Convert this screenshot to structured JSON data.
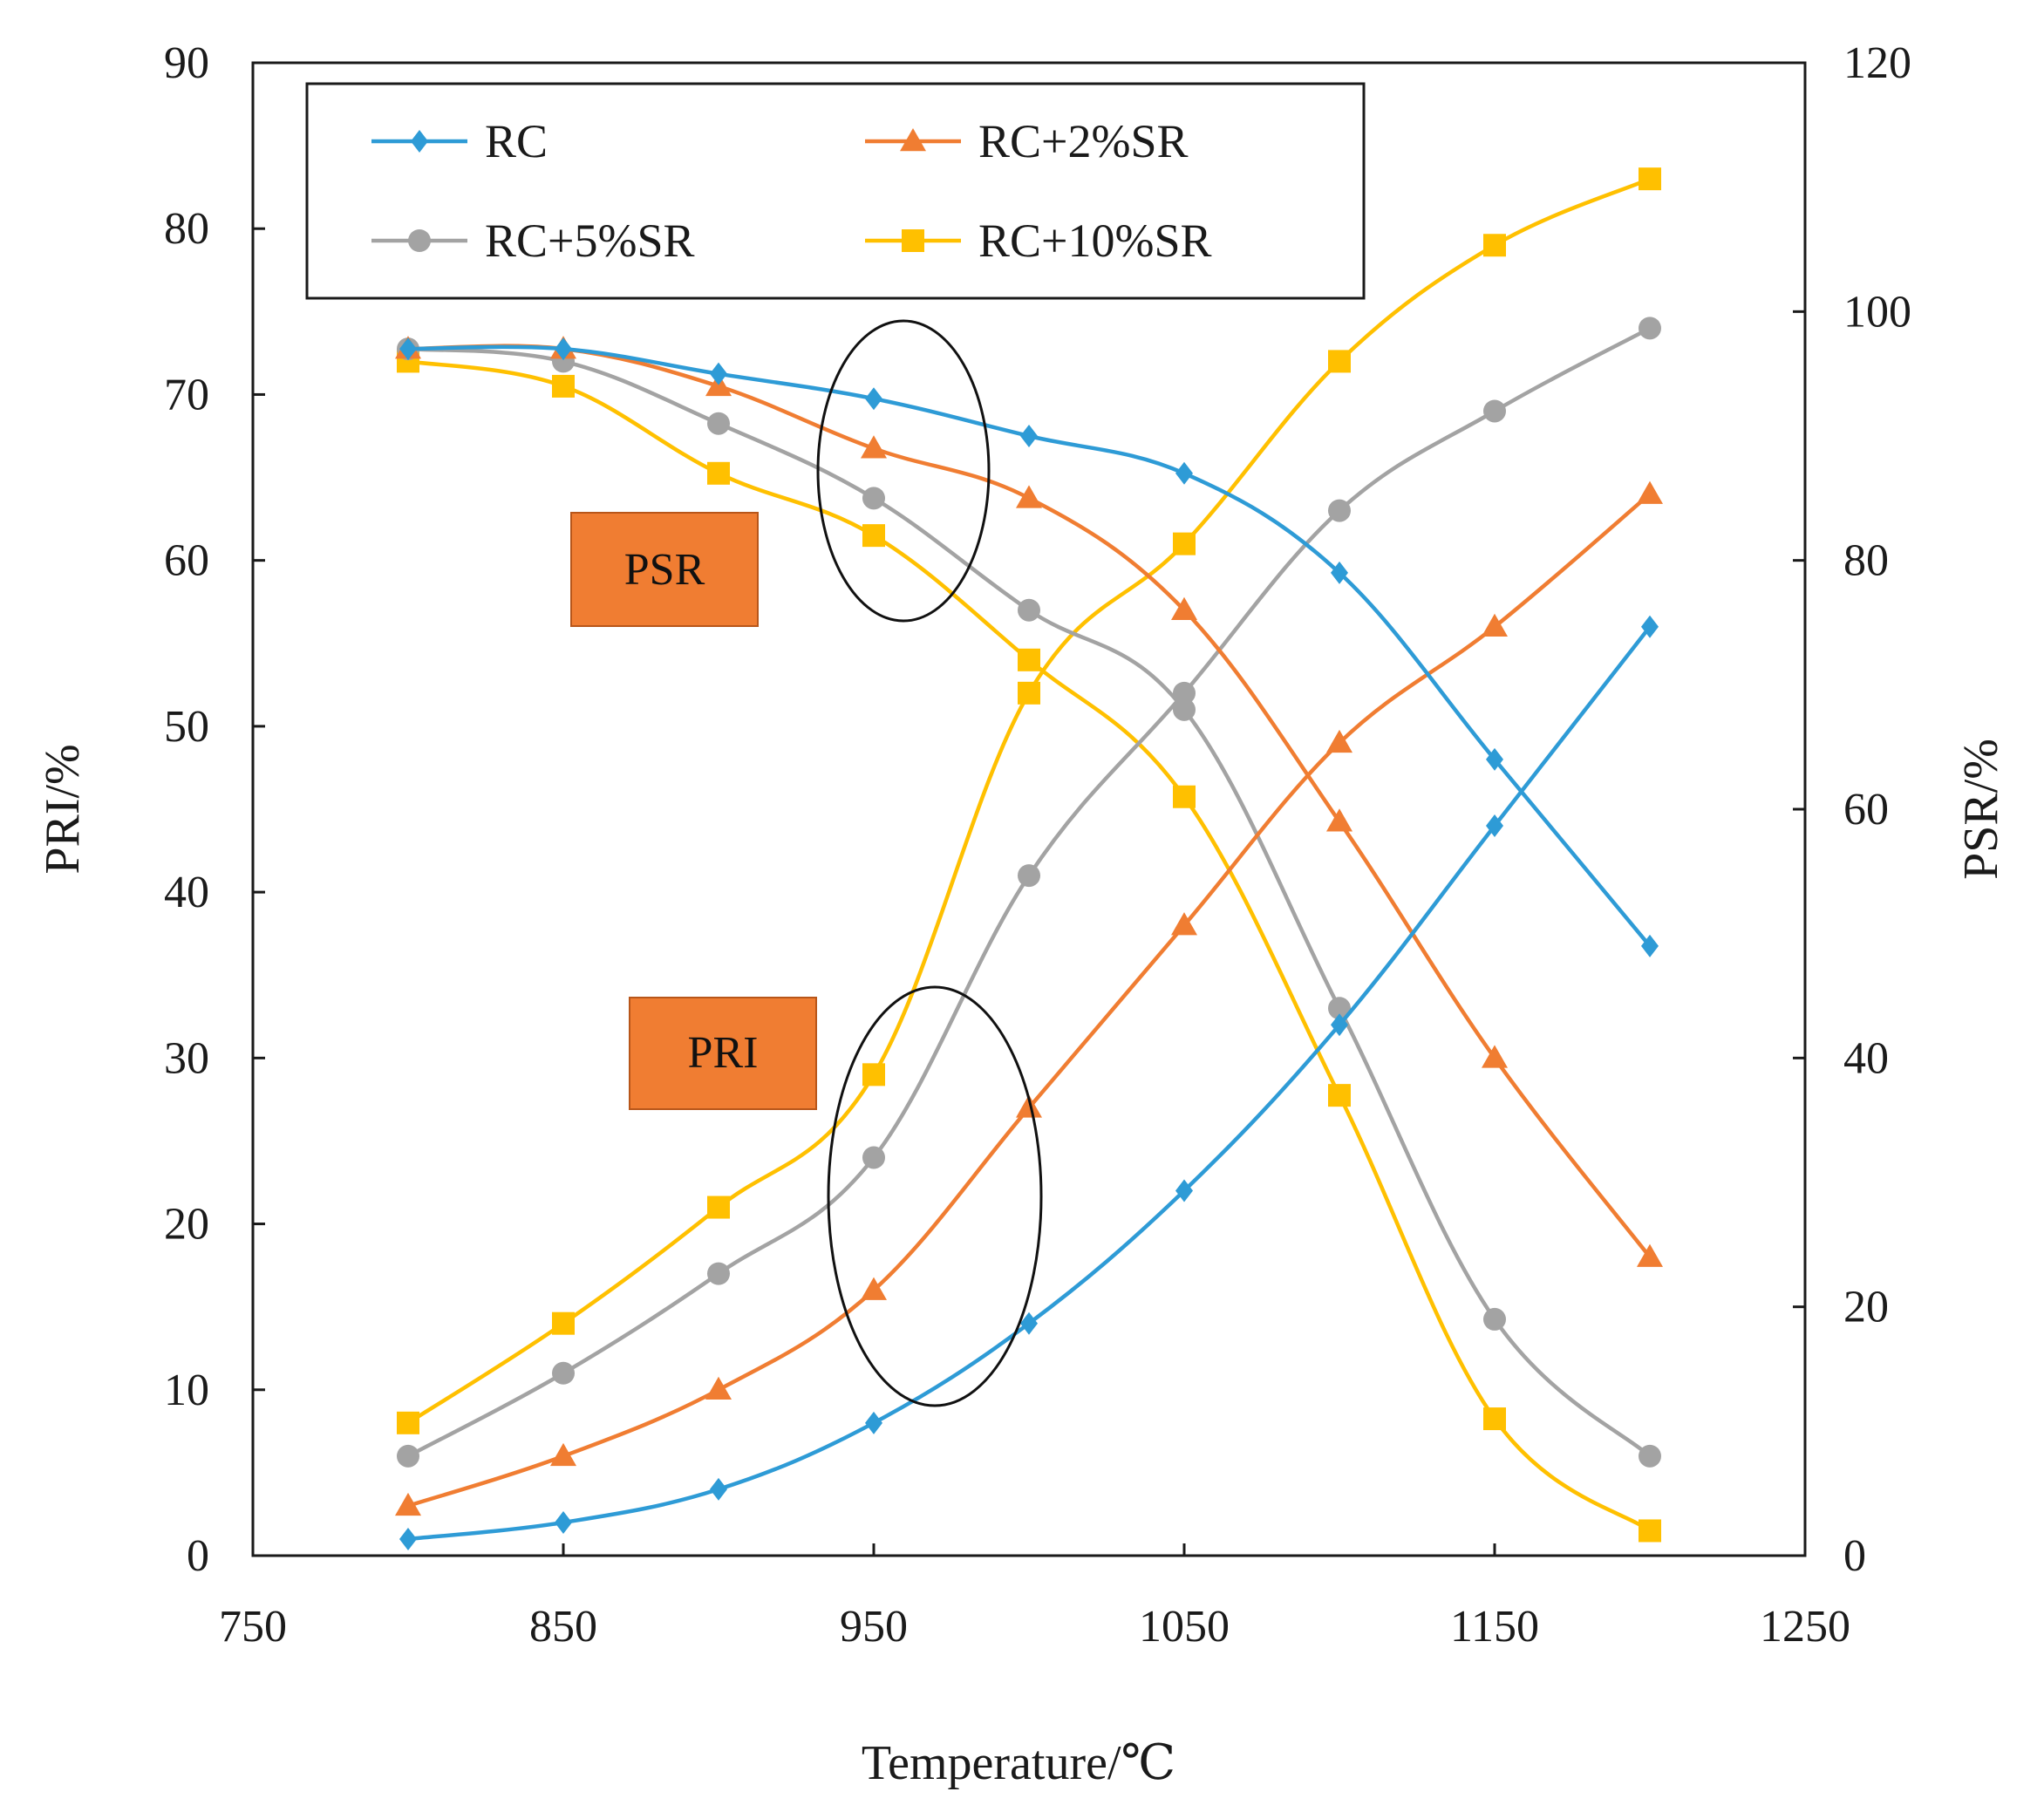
{
  "chart_data": {
    "type": "line",
    "x_axis": {
      "label": "Temperature/℃",
      "range": [
        750,
        1250
      ],
      "ticks": [
        "750",
        "850",
        "950",
        "1050",
        "1150",
        "1250"
      ]
    },
    "y_axis_left": {
      "label": "PRI/%",
      "range": [
        0,
        90
      ],
      "ticks": [
        "0",
        "10",
        "20",
        "30",
        "40",
        "50",
        "60",
        "70",
        "80",
        "90"
      ]
    },
    "y_axis_right": {
      "label": "PSR/%",
      "range": [
        0,
        120
      ],
      "ticks": [
        "0",
        "20",
        "40",
        "60",
        "80",
        "100",
        "120"
      ]
    },
    "x": [
      800,
      850,
      900,
      950,
      1000,
      1050,
      1100,
      1150,
      1200
    ],
    "series": [
      {
        "name": "RC",
        "color": "#2E9BD6",
        "marker": "diamond",
        "pri": [
          1,
          2,
          4,
          8,
          14,
          22,
          32,
          44,
          56
        ],
        "psr": [
          97,
          97,
          95,
          93,
          90,
          87,
          79,
          64,
          49
        ]
      },
      {
        "name": "RC+2%SR",
        "color": "#F07D32",
        "marker": "triangle",
        "pri": [
          3,
          6,
          10,
          16,
          27,
          38,
          49,
          56,
          64
        ],
        "psr": [
          97,
          97,
          94,
          89,
          85,
          76,
          59,
          40,
          24
        ]
      },
      {
        "name": "RC+5%SR",
        "color": "#A3A3A3",
        "marker": "circle",
        "pri": [
          6,
          11,
          17,
          24,
          41,
          52,
          63,
          69,
          74
        ],
        "psr": [
          97,
          96,
          91,
          85,
          76,
          68,
          44,
          19,
          8
        ]
      },
      {
        "name": "RC+10%SR",
        "color": "#FFC000",
        "marker": "square",
        "pri": [
          8,
          14,
          21,
          29,
          52,
          61,
          72,
          79,
          83
        ],
        "psr": [
          96,
          94,
          87,
          82,
          72,
          61,
          37,
          11,
          2
        ]
      }
    ],
    "annotations": [
      {
        "text": "PSR"
      },
      {
        "text": "PRI"
      }
    ],
    "legend_position": "top-left"
  }
}
